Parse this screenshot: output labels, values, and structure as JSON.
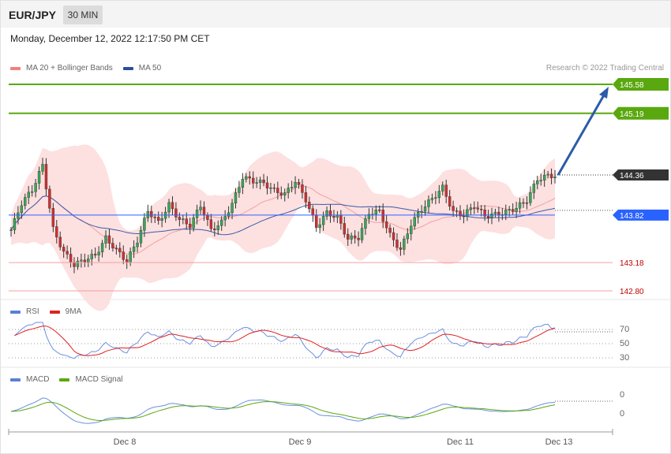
{
  "header": {
    "symbol": "EUR/JPY",
    "timeframe": "30 MIN"
  },
  "datetime": "Monday, December 12, 2022 12:17:50 PM CET",
  "copyright": "Research © 2022 Trading Central",
  "price_panel": {
    "legend": [
      {
        "label": "MA 20 + Bollinger Bands",
        "color": "#f08080"
      },
      {
        "label": "MA 50",
        "color": "#2b4f9e"
      }
    ]
  },
  "rsi_panel": {
    "legend": [
      {
        "label": "RSI",
        "color": "#5b7fd6"
      },
      {
        "label": "9MA",
        "color": "#e02020"
      }
    ],
    "levels": [
      "70",
      "50",
      "30"
    ]
  },
  "macd_panel": {
    "legend": [
      {
        "label": "MACD",
        "color": "#5b7fd6"
      },
      {
        "label": "MACD Signal",
        "color": "#5aa80f"
      }
    ],
    "levels": [
      "0",
      "0"
    ]
  },
  "x_axis": {
    "labels": [
      "Dec 8",
      "Dec 9",
      "Dec 11",
      "Dec 13"
    ]
  },
  "chart_data": {
    "type": "candlestick",
    "ylim": [
      142.65,
      146.1
    ],
    "levels": [
      {
        "label": "145.58",
        "value": 145.58,
        "kind": "resistance",
        "color": "#5aa80f"
      },
      {
        "label": "145.19",
        "value": 145.19,
        "kind": "resistance",
        "color": "#5aa80f"
      },
      {
        "label": "144.36",
        "value": 144.36,
        "kind": "last_price",
        "color": "#333333"
      },
      {
        "label": "143.82",
        "value": 143.82,
        "kind": "pivot",
        "color": "#2962ff"
      },
      {
        "label": "143.18",
        "value": 143.18,
        "kind": "support",
        "color": "#e02020"
      },
      {
        "label": "142.80",
        "value": 142.8,
        "kind": "support",
        "color": "#e02020"
      }
    ],
    "arrow": {
      "from": 144.36,
      "to": 145.58,
      "color": "#2b5ca8"
    },
    "ma50_level": 143.82,
    "closes": [
      143.62,
      143.98,
      144.16,
      144.49,
      143.63,
      143.32,
      143.15,
      143.22,
      143.28,
      143.51,
      143.35,
      143.2,
      143.48,
      143.88,
      143.72,
      143.96,
      143.76,
      143.68,
      143.95,
      143.62,
      143.72,
      143.97,
      144.33,
      144.28,
      144.25,
      144.15,
      144.1,
      144.28,
      144.03,
      143.66,
      143.85,
      143.79,
      143.5,
      143.52,
      143.85,
      143.87,
      143.55,
      143.35,
      143.7,
      143.9,
      144.04,
      144.19,
      143.86,
      143.82,
      143.95,
      143.81,
      143.83,
      143.86,
      143.92,
      144.02,
      144.3,
      144.35
    ]
  }
}
